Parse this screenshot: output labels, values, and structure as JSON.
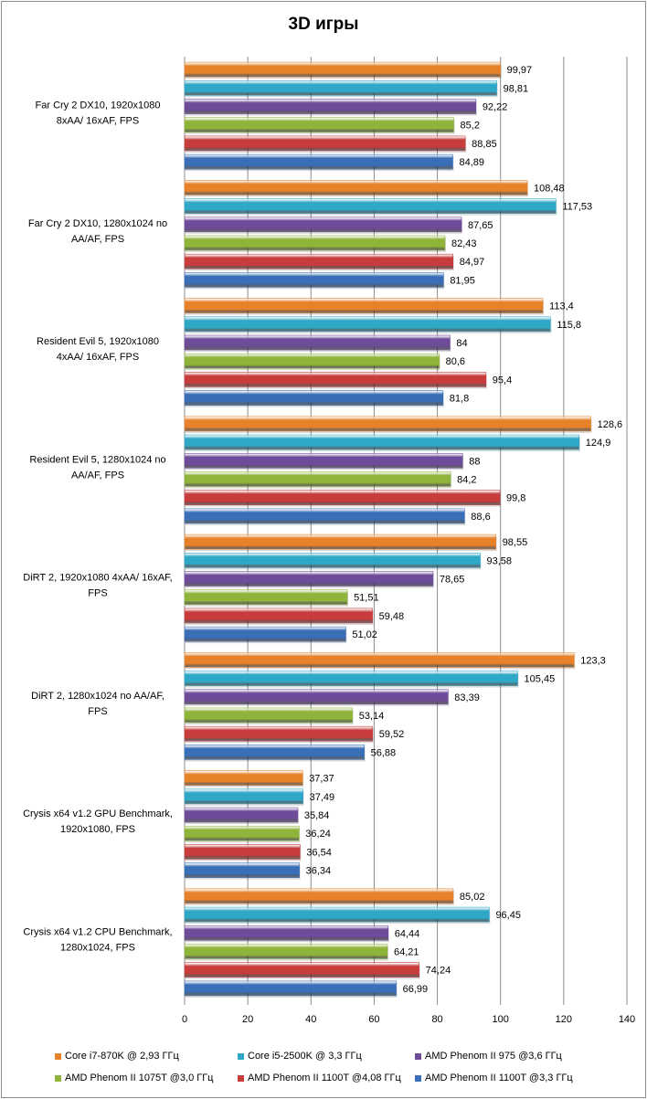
{
  "chart_data": {
    "type": "bar",
    "orientation": "horizontal",
    "title": "3D игры",
    "xlabel": "",
    "ylabel": "",
    "xlim": [
      0,
      140
    ],
    "x_ticks": [
      "0",
      "20",
      "40",
      "60",
      "80",
      "100",
      "120",
      "140"
    ],
    "grid": true,
    "legend_position": "bottom",
    "categories": [
      "Far Cry 2 DX10, 1920x1080 8xAA/ 16xAF, FPS",
      "Far Cry 2 DX10, 1280x1024 no AA/AF, FPS",
      "Resident Evil 5, 1920x1080 4xAA/ 16xAF, FPS",
      "Resident Evil 5, 1280x1024 no AA/AF, FPS",
      "DiRT 2, 1920x1080 4xAA/ 16xAF, FPS",
      "DiRT 2, 1280x1024 no AA/AF, FPS",
      "Crysis x64 v1.2 GPU Benchmark, 1920x1080, FPS",
      "Crysis x64 v1.2 CPU Benchmark, 1280x1024, FPS"
    ],
    "category_lines": [
      [
        "Far Cry 2 DX10, 1920x1080",
        "8xAA/ 16xAF, FPS"
      ],
      [
        "Far Cry 2 DX10, 1280x1024 no",
        "AA/AF, FPS"
      ],
      [
        "Resident Evil 5, 1920x1080",
        "4xAA/ 16xAF, FPS"
      ],
      [
        "Resident Evil 5, 1280x1024 no",
        "AA/AF, FPS"
      ],
      [
        "DiRT 2, 1920x1080 4xAA/ 16xAF,",
        "FPS"
      ],
      [
        "DiRT 2, 1280x1024 no AA/AF,",
        "FPS"
      ],
      [
        "Crysis x64 v1.2 GPU Benchmark,",
        "1920x1080, FPS"
      ],
      [
        "Crysis x64 v1.2 CPU Benchmark,",
        "1280x1024, FPS"
      ]
    ],
    "series": [
      {
        "name": "Core i7-870K @ 2,93 ГГц",
        "color": "#e8822a",
        "values": [
          99.97,
          108.48,
          113.4,
          128.6,
          98.55,
          123.3,
          37.37,
          85.02
        ],
        "labels": [
          "99,97",
          "108,48",
          "113,4",
          "128,6",
          "98,55",
          "123,3",
          "37,37",
          "85,02"
        ]
      },
      {
        "name": "Core i5-2500K @ 3,3 ГГц",
        "color": "#2fa8c8",
        "values": [
          98.81,
          117.53,
          115.8,
          124.9,
          93.58,
          105.45,
          37.49,
          96.45
        ],
        "labels": [
          "98,81",
          "117,53",
          "115,8",
          "124,9",
          "93,58",
          "105,45",
          "37,49",
          "96,45"
        ]
      },
      {
        "name": "AMD Phenom II 975 @3,6 ГГц",
        "color": "#6e4c9a",
        "values": [
          92.22,
          87.65,
          84,
          88,
          78.65,
          83.39,
          35.84,
          64.44
        ],
        "labels": [
          "92,22",
          "87,65",
          "84",
          "88",
          "78,65",
          "83,39",
          "35,84",
          "64,44"
        ]
      },
      {
        "name": "AMD Phenom II 1075T @3,0 ГГц",
        "color": "#8fb43a",
        "values": [
          85.2,
          82.43,
          80.6,
          84.2,
          51.51,
          53.14,
          36.24,
          64.21
        ],
        "labels": [
          "85,2",
          "82,43",
          "80,6",
          "84,2",
          "51,51",
          "53,14",
          "36,24",
          "64,21"
        ]
      },
      {
        "name": "AMD Phenom II 1100T @4,08 ГГц",
        "color": "#c83c3c",
        "values": [
          88.85,
          84.97,
          95.4,
          99.8,
          59.48,
          59.52,
          36.54,
          74.24
        ],
        "labels": [
          "88,85",
          "84,97",
          "95,4",
          "99,8",
          "59,48",
          "59,52",
          "36,54",
          "74,24"
        ]
      },
      {
        "name": "AMD Phenom II 1100T @3,3 ГГц",
        "color": "#3a6fb8",
        "values": [
          84.89,
          81.95,
          81.8,
          88.6,
          51.02,
          56.88,
          36.34,
          66.99
        ],
        "labels": [
          "84,89",
          "81,95",
          "81,8",
          "88,6",
          "51,02",
          "56,88",
          "36,34",
          "66,99"
        ]
      }
    ]
  }
}
